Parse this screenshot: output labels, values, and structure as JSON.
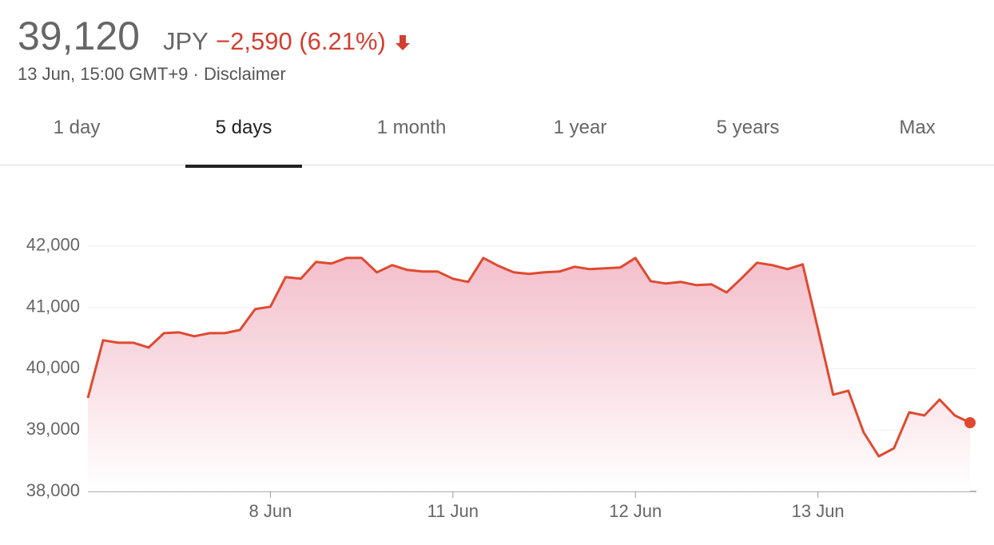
{
  "header": {
    "price": "39,120",
    "currency": "JPY",
    "change": "−2,590 (6.21%)",
    "timestamp": "13 Jun, 15:00 GMT+9",
    "separator": "·",
    "disclaimer": "Disclaimer"
  },
  "tabs": {
    "items": [
      "1 day",
      "5 days",
      "1 month",
      "1 year",
      "5 years",
      "Max"
    ],
    "active": 1
  },
  "chart_data": {
    "type": "area",
    "categories": [
      null,
      null,
      null,
      null,
      null,
      null,
      null,
      null,
      null,
      null,
      null,
      null,
      "8 Jun",
      null,
      null,
      null,
      null,
      null,
      null,
      null,
      null,
      null,
      null,
      null,
      "11 Jun",
      null,
      null,
      null,
      null,
      null,
      null,
      null,
      null,
      null,
      null,
      null,
      "12 Jun",
      null,
      null,
      null,
      null,
      null,
      null,
      null,
      null,
      null,
      null,
      null,
      "13 Jun",
      null,
      null,
      null,
      null,
      null,
      null,
      null,
      null,
      null,
      null
    ],
    "values": [
      39524,
      40463,
      40423,
      40423,
      40345,
      40580,
      40593,
      40528,
      40580,
      40580,
      40632,
      40971,
      41010,
      41492,
      41466,
      41739,
      41713,
      41805,
      41805,
      41570,
      41687,
      41609,
      41583,
      41583,
      41466,
      41414,
      41805,
      41674,
      41570,
      41544,
      41570,
      41583,
      41661,
      41622,
      41635,
      41648,
      41805,
      41427,
      41388,
      41414,
      41362,
      41375,
      41244,
      41479,
      41726,
      41687,
      41622,
      41700,
      40645,
      39577,
      39642,
      38964,
      38573,
      38704,
      39290,
      39238,
      39498,
      39238,
      39120
    ],
    "color": "#e0492f",
    "ylim": [
      38000,
      43000
    ],
    "yticks": [
      {
        "value": 38000,
        "label": "38,000"
      },
      {
        "value": 39000,
        "label": "39,000"
      },
      {
        "value": 40000,
        "label": "40,000"
      },
      {
        "value": 41000,
        "label": "41,000"
      },
      {
        "value": 42000,
        "label": "42,000"
      }
    ],
    "grid": true,
    "end_marker": true
  }
}
